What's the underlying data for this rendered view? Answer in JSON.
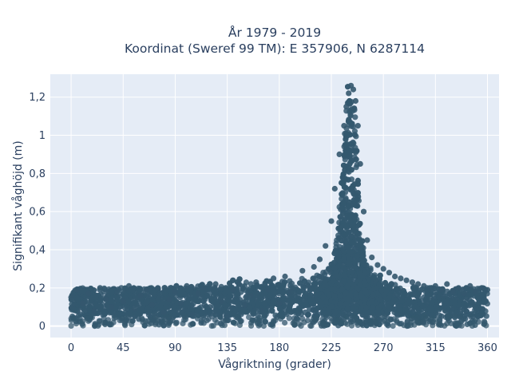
{
  "chart_data": {
    "type": "scatter",
    "title_line1": "År 1979 - 2019",
    "title_line2": "Koordinat (Sweref 99 TM): E 357906, N 6287114",
    "xlabel": "Vågriktning (grader)",
    "ylabel": "Signifikant våghöjd (m)",
    "xlim": [
      -18,
      370
    ],
    "ylim": [
      -0.06,
      1.32
    ],
    "x_ticks": [
      0,
      45,
      90,
      135,
      180,
      225,
      270,
      315,
      360
    ],
    "x_tick_labels": [
      "0",
      "45",
      "90",
      "135",
      "180",
      "225",
      "270",
      "315",
      "360"
    ],
    "y_ticks": [
      0,
      0.2,
      0.4,
      0.6,
      0.8,
      1.0,
      1.2
    ],
    "y_tick_labels": [
      "0",
      "0,2",
      "0,4",
      "0,6",
      "0,8",
      "1",
      "1,2"
    ],
    "grid": true,
    "marker_color": "#34586e",
    "plot_background": "#e5ecf6",
    "series": [
      {
        "peak_direction": 242,
        "max_height": 1.26,
        "points": [
          [
            0,
            0.15
          ],
          [
            5,
            0.19
          ],
          [
            10,
            0.12
          ],
          [
            15,
            0.17
          ],
          [
            20,
            0.08
          ],
          [
            25,
            0.2
          ],
          [
            30,
            0.14
          ],
          [
            35,
            0.1
          ],
          [
            40,
            0.18
          ],
          [
            45,
            0.13
          ],
          [
            50,
            0.21
          ],
          [
            55,
            0.09
          ],
          [
            60,
            0.16
          ],
          [
            65,
            0.19
          ],
          [
            70,
            0.11
          ],
          [
            75,
            0.2
          ],
          [
            80,
            0.07
          ],
          [
            85,
            0.14
          ],
          [
            90,
            0.18
          ],
          [
            95,
            0.12
          ],
          [
            100,
            0.21
          ],
          [
            105,
            0.06
          ],
          [
            110,
            0.17
          ],
          [
            115,
            0.2
          ],
          [
            120,
            0.1
          ],
          [
            125,
            0.22
          ],
          [
            130,
            0.13
          ],
          [
            135,
            0.05
          ],
          [
            140,
            0.19
          ],
          [
            145,
            0.22
          ],
          [
            150,
            0.11
          ],
          [
            155,
            0.16
          ],
          [
            160,
            0.23
          ],
          [
            165,
            0.08
          ],
          [
            170,
            0.19
          ],
          [
            175,
            0.25
          ],
          [
            180,
            0.12
          ],
          [
            185,
            0.26
          ],
          [
            190,
            0.18
          ],
          [
            195,
            0.04
          ],
          [
            200,
            0.29
          ],
          [
            205,
            0.21
          ],
          [
            210,
            0.31
          ],
          [
            215,
            0.35
          ],
          [
            220,
            0.42
          ],
          [
            225,
            0.55
          ],
          [
            228,
            0.72
          ],
          [
            232,
            0.9
          ],
          [
            236,
            1.05
          ],
          [
            238,
            1.15
          ],
          [
            240,
            1.22
          ],
          [
            242,
            1.26
          ],
          [
            244,
            1.24
          ],
          [
            246,
            1.18
          ],
          [
            248,
            1.05
          ],
          [
            250,
            0.85
          ],
          [
            253,
            0.6
          ],
          [
            256,
            0.45
          ],
          [
            260,
            0.36
          ],
          [
            265,
            0.32
          ],
          [
            270,
            0.3
          ],
          [
            275,
            0.28
          ],
          [
            280,
            0.26
          ],
          [
            285,
            0.25
          ],
          [
            290,
            0.24
          ],
          [
            295,
            0.23
          ],
          [
            300,
            0.22
          ],
          [
            305,
            0.21
          ],
          [
            310,
            0.2
          ],
          [
            315,
            0.21
          ],
          [
            320,
            0.19
          ],
          [
            325,
            0.22
          ],
          [
            330,
            0.18
          ],
          [
            335,
            0.2
          ],
          [
            340,
            0.17
          ],
          [
            345,
            0.21
          ],
          [
            350,
            0.18
          ],
          [
            355,
            0.2
          ],
          [
            360,
            0.19
          ]
        ]
      }
    ]
  }
}
